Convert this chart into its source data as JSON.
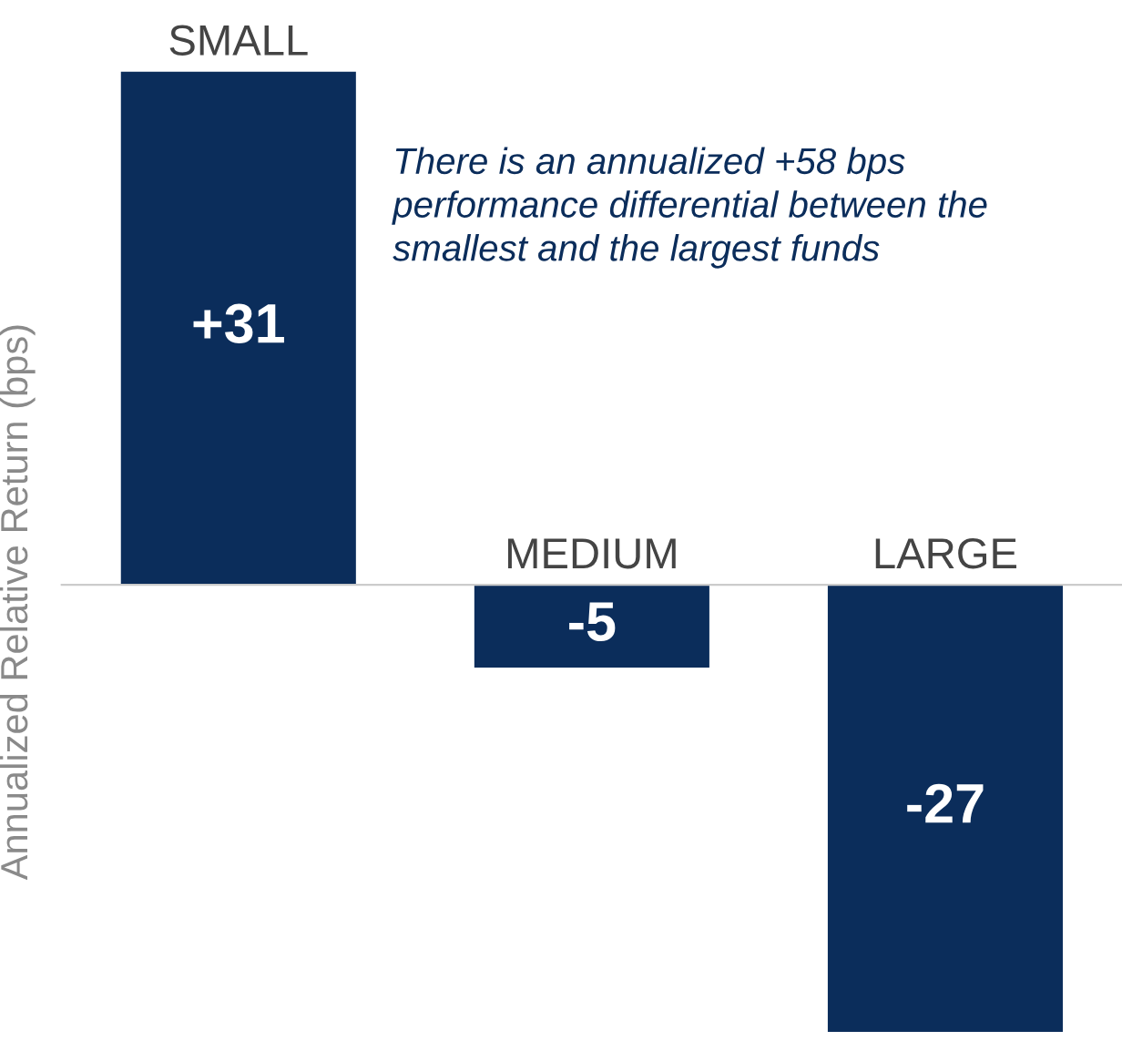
{
  "chart_data": {
    "type": "bar",
    "ylabel": "Annualized Relative Return (bps)",
    "categories": [
      "SMALL",
      "MEDIUM",
      "LARGE"
    ],
    "values": [
      31,
      -5,
      -27
    ],
    "value_labels": [
      "+31",
      "-5",
      "-27"
    ],
    "color": "#0b2d5b",
    "annotations": [
      "There is an annualized +58 bps performance differential between the smallest and the largest funds"
    ]
  }
}
